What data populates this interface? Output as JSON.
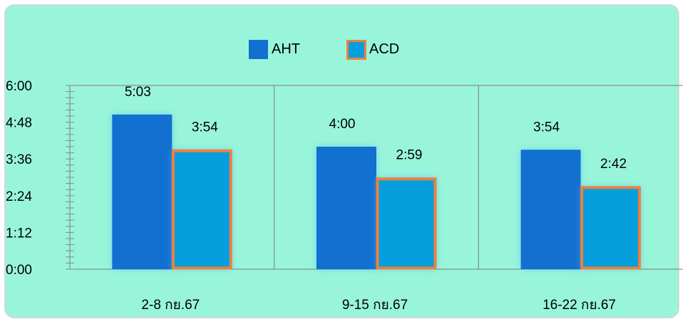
{
  "chart_data": {
    "type": "bar",
    "categories": [
      "2-8 กย.67",
      "9-15 กย.67",
      "16-22 กย.67"
    ],
    "series": [
      {
        "name": "AHT",
        "values": [
          303,
          240,
          234
        ],
        "labels": [
          "5:03",
          "4:00",
          "3:54"
        ],
        "color": "#1270d0"
      },
      {
        "name": "ACD",
        "values": [
          234,
          179,
          162
        ],
        "labels": [
          "3:54",
          "2:59",
          "2:42"
        ],
        "color": "#069fde",
        "border": "#f0803c"
      }
    ],
    "yticks": [
      {
        "value": 0,
        "label": "0:00"
      },
      {
        "value": 72,
        "label": "1:12"
      },
      {
        "value": 144,
        "label": "2:24"
      },
      {
        "value": 216,
        "label": "3:36"
      },
      {
        "value": 288,
        "label": "4:48"
      },
      {
        "value": 360,
        "label": "6:00"
      }
    ],
    "ylim": [
      0,
      360
    ],
    "y_unit": "seconds (displayed as m:ss)",
    "legend": "top-center",
    "grid": "vertical category dividers",
    "background": "#99f5d9"
  }
}
